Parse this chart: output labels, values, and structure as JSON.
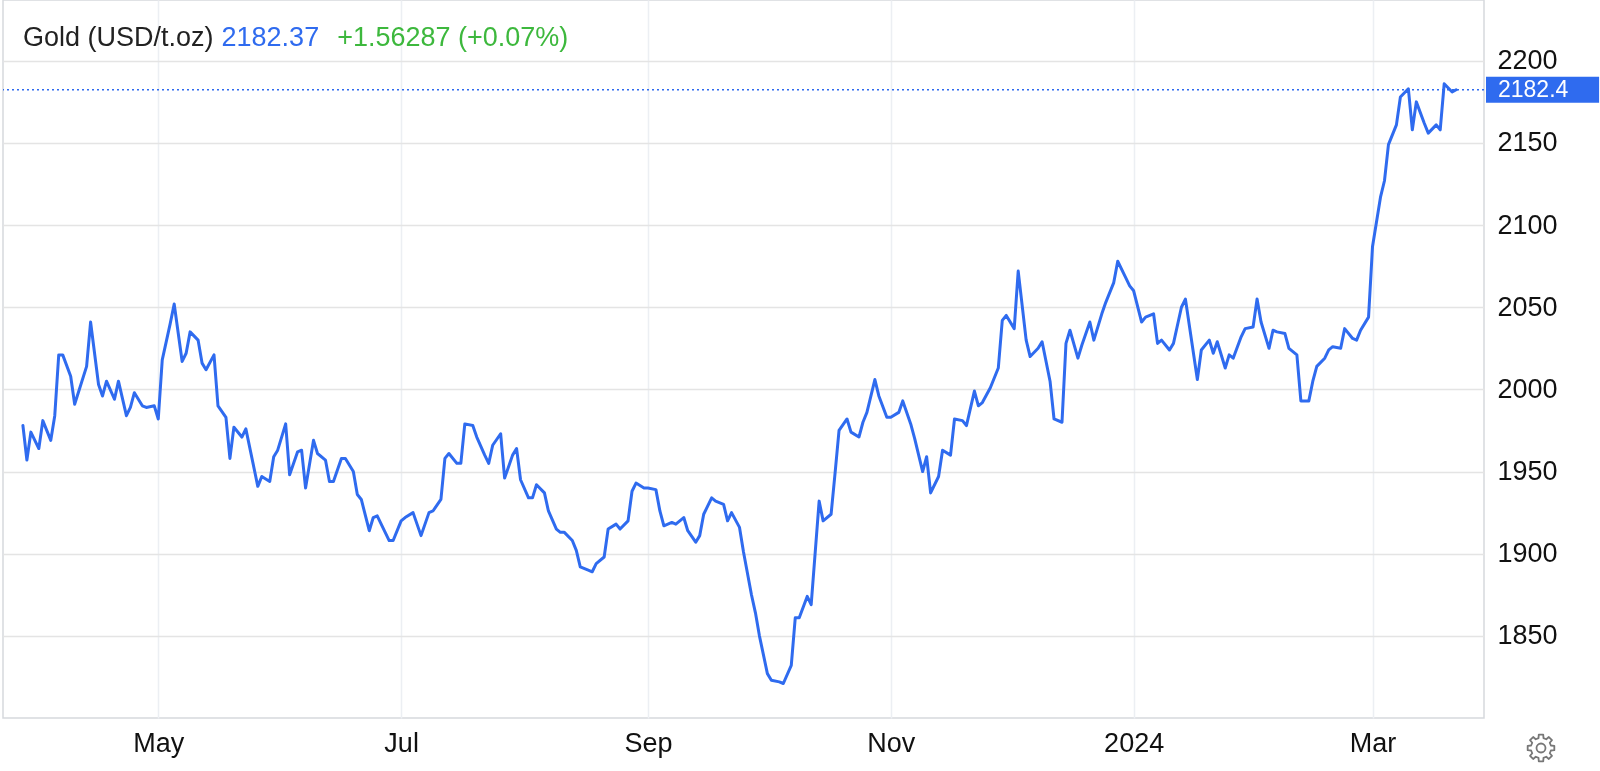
{
  "chart_data": {
    "type": "line",
    "title": "Gold (USD/t.oz)",
    "annotations": [
      "2182.37",
      "+1.56287 (+0.07%)"
    ],
    "x": [
      "2023-03-28",
      "2023-03-29",
      "2023-03-30",
      "2023-04-01",
      "2023-04-02",
      "2023-04-04",
      "2023-04-05",
      "2023-04-06",
      "2023-04-07",
      "2023-04-09",
      "2023-04-10",
      "2023-04-13",
      "2023-04-14",
      "2023-04-16",
      "2023-04-17",
      "2023-04-18",
      "2023-04-20",
      "2023-04-21",
      "2023-04-23",
      "2023-04-24",
      "2023-04-25",
      "2023-04-27",
      "2023-04-28",
      "2023-04-30",
      "2023-05-01",
      "2023-05-02",
      "2023-05-04",
      "2023-05-05",
      "2023-05-07",
      "2023-05-08",
      "2023-05-09",
      "2023-05-11",
      "2023-05-12",
      "2023-05-13",
      "2023-05-15",
      "2023-05-16",
      "2023-05-18",
      "2023-05-19",
      "2023-05-20",
      "2023-05-22",
      "2023-05-23",
      "2023-05-26",
      "2023-05-27",
      "2023-05-29",
      "2023-05-30",
      "2023-05-31",
      "2023-06-02",
      "2023-06-03",
      "2023-06-05",
      "2023-06-06",
      "2023-06-07",
      "2023-06-09",
      "2023-06-10",
      "2023-06-12",
      "2023-06-13",
      "2023-06-14",
      "2023-06-16",
      "2023-06-17",
      "2023-06-19",
      "2023-06-20",
      "2023-06-21",
      "2023-06-23",
      "2023-06-24",
      "2023-06-25",
      "2023-06-27",
      "2023-06-28",
      "2023-06-29",
      "2023-07-01",
      "2023-07-02",
      "2023-07-04",
      "2023-07-06",
      "2023-07-08",
      "2023-07-09",
      "2023-07-11",
      "2023-07-12",
      "2023-07-13",
      "2023-07-15",
      "2023-07-16",
      "2023-07-17",
      "2023-07-19",
      "2023-07-20",
      "2023-07-22",
      "2023-07-23",
      "2023-07-24",
      "2023-07-26",
      "2023-07-27",
      "2023-07-29",
      "2023-07-30",
      "2023-07-31",
      "2023-08-02",
      "2023-08-03",
      "2023-08-04",
      "2023-08-06",
      "2023-08-07",
      "2023-08-09",
      "2023-08-10",
      "2023-08-11",
      "2023-08-13",
      "2023-08-14",
      "2023-08-15",
      "2023-08-17",
      "2023-08-18",
      "2023-08-19",
      "2023-08-21",
      "2023-08-22",
      "2023-08-24",
      "2023-08-25",
      "2023-08-27",
      "2023-08-28",
      "2023-08-29",
      "2023-08-31",
      "2023-09-01",
      "2023-09-03",
      "2023-09-04",
      "2023-09-05",
      "2023-09-07",
      "2023-09-08",
      "2023-09-10",
      "2023-09-11",
      "2023-09-13",
      "2023-09-14",
      "2023-09-15",
      "2023-09-17",
      "2023-09-18",
      "2023-09-20",
      "2023-09-21",
      "2023-09-22",
      "2023-09-24",
      "2023-09-25",
      "2023-09-27",
      "2023-09-28",
      "2023-09-29",
      "2023-10-01",
      "2023-10-02",
      "2023-10-04",
      "2023-10-05",
      "2023-10-07",
      "2023-10-08",
      "2023-10-09",
      "2023-10-11",
      "2023-10-12",
      "2023-10-14",
      "2023-10-15",
      "2023-10-17",
      "2023-10-18",
      "2023-10-19",
      "2023-10-21",
      "2023-10-22",
      "2023-10-24",
      "2023-10-25",
      "2023-10-26",
      "2023-10-28",
      "2023-10-29",
      "2023-10-31",
      "2023-11-01",
      "2023-11-03",
      "2023-11-04",
      "2023-11-06",
      "2023-11-07",
      "2023-11-09",
      "2023-11-10",
      "2023-11-11",
      "2023-11-13",
      "2023-11-14",
      "2023-11-16",
      "2023-11-17",
      "2023-11-19",
      "2023-11-20",
      "2023-11-22",
      "2023-11-23",
      "2023-11-24",
      "2023-11-26",
      "2023-11-28",
      "2023-11-29",
      "2023-11-30",
      "2023-12-02",
      "2023-12-03",
      "2023-12-05",
      "2023-12-06",
      "2023-12-08",
      "2023-12-09",
      "2023-12-11",
      "2023-12-12",
      "2023-12-14",
      "2023-12-15",
      "2023-12-16",
      "2023-12-18",
      "2023-12-19",
      "2023-12-21",
      "2023-12-22",
      "2023-12-24",
      "2023-12-25",
      "2023-12-27",
      "2023-12-28",
      "2023-12-30",
      "2023-12-31",
      "2024-01-01",
      "2024-01-03",
      "2024-01-04",
      "2024-01-06",
      "2024-01-07",
      "2024-01-08",
      "2024-01-10",
      "2024-01-11",
      "2024-01-13",
      "2024-01-14",
      "2024-01-17",
      "2024-01-18",
      "2024-01-20",
      "2024-01-21",
      "2024-01-22",
      "2024-01-24",
      "2024-01-25",
      "2024-01-26",
      "2024-01-28",
      "2024-01-29",
      "2024-01-31",
      "2024-02-01",
      "2024-02-02",
      "2024-02-04",
      "2024-02-05",
      "2024-02-06",
      "2024-02-08",
      "2024-02-09",
      "2024-02-11",
      "2024-02-12",
      "2024-02-14",
      "2024-02-15",
      "2024-02-16",
      "2024-02-18",
      "2024-02-19",
      "2024-02-20",
      "2024-02-22",
      "2024-02-23",
      "2024-02-25",
      "2024-02-26",
      "2024-02-27",
      "2024-02-29",
      "2024-03-01",
      "2024-03-03",
      "2024-03-04",
      "2024-03-05",
      "2024-03-07",
      "2024-03-08",
      "2024-03-10",
      "2024-03-11",
      "2024-03-12",
      "2024-03-14",
      "2024-03-15",
      "2024-03-17",
      "2024-03-18",
      "2024-03-19",
      "2024-03-21",
      "2024-03-22"
    ],
    "series": [
      {
        "color": "#2f6bef",
        "values": [
          1978,
          1957,
          1974,
          1964,
          1981,
          1969,
          1984,
          2021,
          2021,
          2008,
          1991,
          2014,
          2041,
          2003,
          1996,
          2005,
          1994,
          2005,
          1984,
          1989,
          1998,
          1990,
          1989,
          1990,
          1982,
          2018,
          2040,
          2052,
          2017,
          2022,
          2035,
          2030,
          2016,
          2012,
          2021,
          1990,
          1983,
          1958,
          1977,
          1971,
          1976,
          1941,
          1947,
          1944,
          1959,
          1963,
          1979,
          1948,
          1962,
          1963,
          1940,
          1969,
          1961,
          1957,
          1944,
          1944,
          1958,
          1958,
          1950,
          1936,
          1933,
          1914,
          1922,
          1923,
          1913,
          1908,
          1908,
          1920,
          1922,
          1925,
          1911,
          1925,
          1926,
          1933,
          1958,
          1961,
          1955,
          1955,
          1979,
          1978,
          1971,
          1960,
          1955,
          1966,
          1973,
          1946,
          1960,
          1964,
          1945,
          1934,
          1934,
          1942,
          1937,
          1926,
          1915,
          1913,
          1913,
          1908,
          1902,
          1892,
          1890,
          1889,
          1894,
          1898,
          1915,
          1918,
          1915,
          1920,
          1938,
          1943,
          1940,
          1940,
          1939,
          1926,
          1917,
          1919,
          1918,
          1922,
          1914,
          1907,
          1911,
          1924,
          1934,
          1932,
          1930,
          1920,
          1925,
          1916,
          1901,
          1875,
          1864,
          1850,
          1827,
          1823,
          1822,
          1821,
          1832,
          1861,
          1861,
          1874,
          1869,
          1932,
          1920,
          1924,
          1949,
          1975,
          1982,
          1974,
          1971,
          1980,
          1986,
          2006,
          1996,
          1983,
          1983,
          1986,
          1993,
          1979,
          1970,
          1950,
          1959,
          1937,
          1947,
          1963,
          1960,
          1982,
          1981,
          1978,
          1999,
          1990,
          1992,
          2001,
          2013,
          2042,
          2045,
          2037,
          2072,
          2030,
          2020,
          2025,
          2029,
          2005,
          1982,
          1980,
          2028,
          2036,
          2019,
          2027,
          2041,
          2030,
          2046,
          2053,
          2065,
          2078,
          2068,
          2063,
          2060,
          2041,
          2044,
          2046,
          2028,
          2030,
          2024,
          2028,
          2050,
          2055,
          2006,
          2024,
          2030,
          2022,
          2029,
          2013,
          2021,
          2019,
          2032,
          2037,
          2038,
          2055,
          2041,
          2025,
          2036,
          2035,
          2034,
          2025,
          2021,
          1993,
          1993,
          2005,
          2014,
          2019,
          2024,
          2026,
          2025,
          2037,
          2031,
          2030,
          2036,
          2044,
          2087,
          2117,
          2127,
          2149,
          2161,
          2178,
          2183,
          2158,
          2175,
          2162,
          2156,
          2161,
          2158,
          2186,
          2181,
          2182.37
        ]
      }
    ],
    "xlim": [
      "2023-03-23",
      "2024-03-29"
    ],
    "xticks": [
      {
        "value": "2023-05-01",
        "label": "May"
      },
      {
        "value": "2023-07-01",
        "label": "Jul"
      },
      {
        "value": "2023-09-01",
        "label": "Sep"
      },
      {
        "value": "2023-11-01",
        "label": "Nov"
      },
      {
        "value": "2024-01-01",
        "label": "2024"
      },
      {
        "value": "2024-03-01",
        "label": "Mar"
      }
    ],
    "ylim": [
      1800,
      2237
    ],
    "yticks": [
      1850,
      1900,
      1950,
      2000,
      2050,
      2100,
      2150,
      2200
    ],
    "grid": true,
    "ref_lines": [
      {
        "axis": "y",
        "value": 2182.4,
        "label": "2182.4",
        "color": "#2f6bef",
        "line_style": "dotted"
      }
    ]
  }
}
